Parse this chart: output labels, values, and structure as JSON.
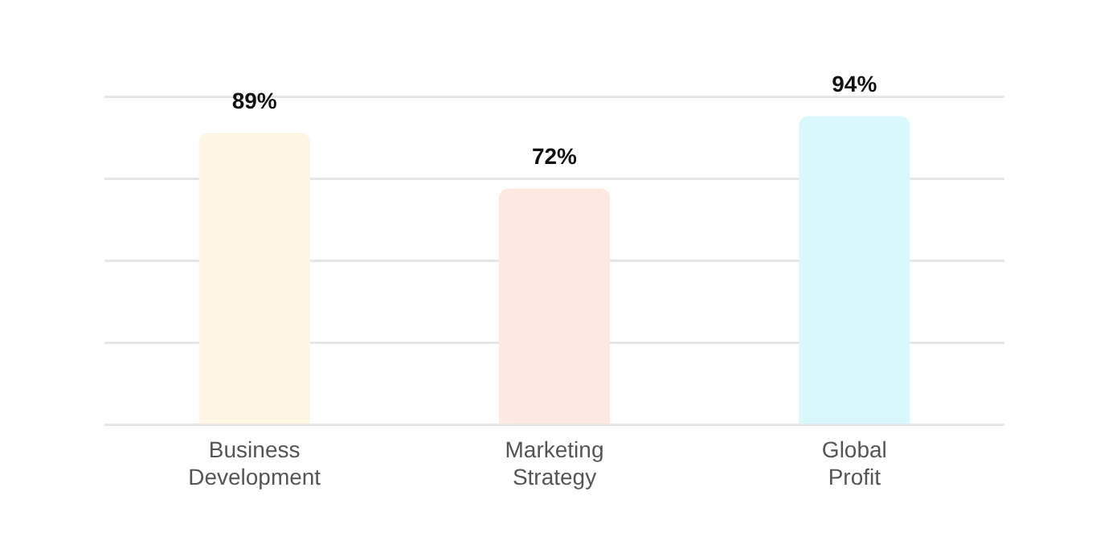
{
  "chart_data": {
    "type": "bar",
    "categories": [
      "Business Development",
      "Marketing Strategy",
      "Global Profit"
    ],
    "values": [
      89,
      72,
      94
    ],
    "colors": [
      "#fff6e6",
      "#fde8e2",
      "#d9f8fc"
    ],
    "value_labels": [
      "89%",
      "72%",
      "94%"
    ],
    "ylim": [
      0,
      100
    ],
    "yticks": [
      {
        "value": 0,
        "label": null
      },
      {
        "value": 25,
        "label": null
      },
      {
        "value": 50,
        "label": null
      },
      {
        "value": 75,
        "label": null
      },
      {
        "value": 100,
        "label": null
      }
    ],
    "grid": "y",
    "tick_labels": "x",
    "legend": false
  }
}
